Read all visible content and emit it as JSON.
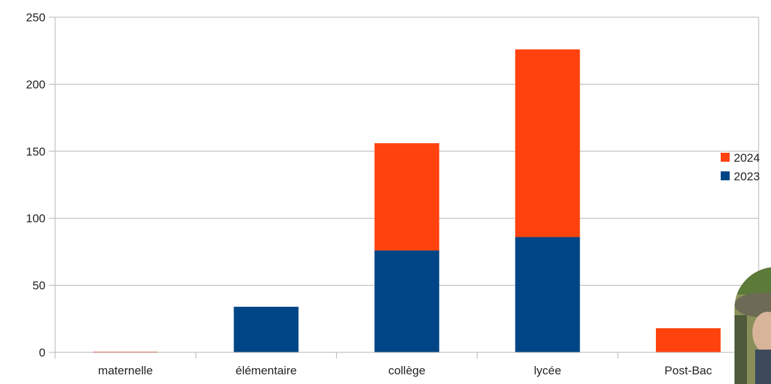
{
  "chart_data": {
    "type": "bar",
    "stacked": true,
    "categories": [
      "maternelle",
      "élémentaire",
      "collège",
      "lycée",
      "Post-Bac"
    ],
    "series": [
      {
        "name": "2023",
        "color": "#004586",
        "values": [
          0,
          34,
          76,
          86,
          0
        ]
      },
      {
        "name": "2024",
        "color": "#ff420e",
        "values": [
          0.5,
          0,
          80,
          140,
          18
        ]
      }
    ],
    "ylim": [
      0,
      250
    ],
    "yticks": [
      0,
      50,
      100,
      150,
      200,
      250
    ],
    "grid": true,
    "legend": "right",
    "legend_order": [
      "2024",
      "2023"
    ],
    "title": "",
    "xlabel": "",
    "ylabel": ""
  }
}
